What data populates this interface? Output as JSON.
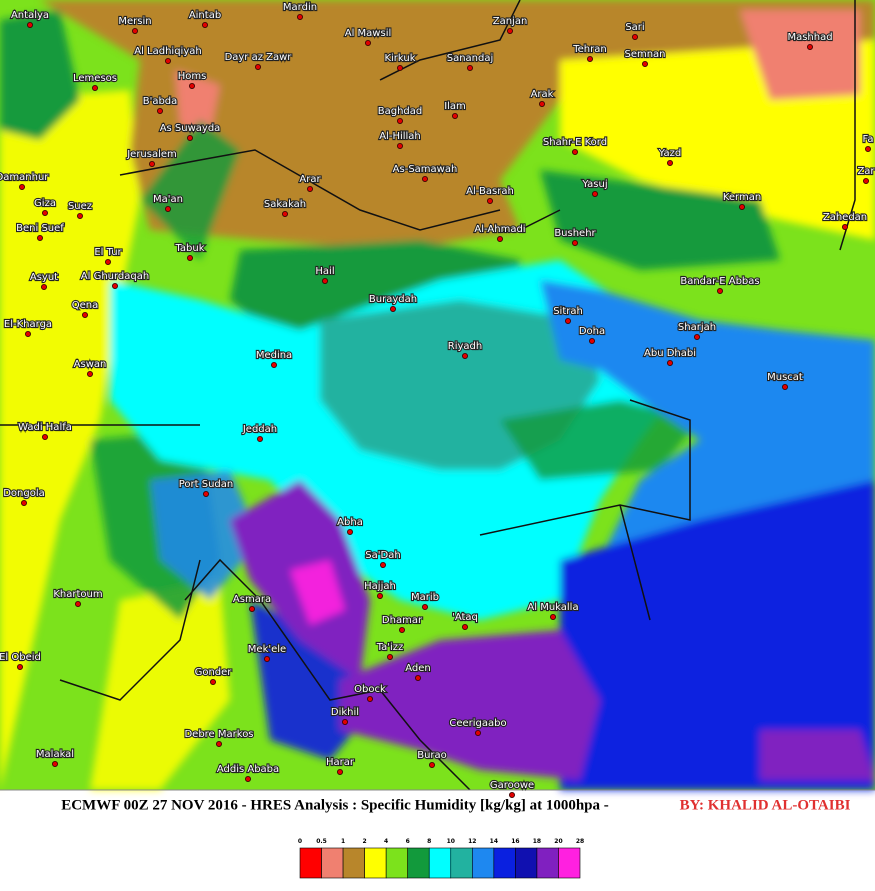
{
  "title": "ECMWF 00Z 27 NOV 2016 - HRES Analysis : Specific Humidity [kg/kg] at 1000hpa -",
  "byline": "BY: KHALID AL-OTAIBI",
  "cities": [
    "Antalya",
    "Mersin",
    "Aintab",
    "Mardin",
    "Al Mawsil",
    "Zanjan",
    "Sari",
    "Mashhad",
    "Al Ladhiqiyah",
    "Dayr az Zawr",
    "Kirkuk",
    "Sanandaj",
    "Tehran",
    "Semnan",
    "Lemesos",
    "Homs",
    "Arak",
    "B'abda",
    "Baghdad",
    "Ilam",
    "As Suwayda",
    "Al-Hillah",
    "Shahr-E Kord",
    "Yazd",
    "Fa",
    "Jerusalem",
    "As-Samawah",
    "Zar",
    "Damanhur",
    "Arar",
    "Al-Basrah",
    "Yasuj",
    "Kerman",
    "Giza",
    "Suez",
    "Ma'an",
    "Sakakah",
    "Zahedan",
    "Beni Suef",
    "Al-Ahmadi",
    "Bushehr",
    "El Tur",
    "Tabuk",
    "Asyut",
    "Al Ghurdaqah",
    "Hail",
    "Bandar-E Abbas",
    "Qena",
    "Buraydah",
    "Sitrah",
    "Sharjah",
    "El-Kharga",
    "Doha",
    "Riyadh",
    "Abu Dhabi",
    "Medina",
    "Aswan",
    "Muscat",
    "Wadi Halfa",
    "Jeddah",
    "Port Sudan",
    "Dongola",
    "Abha",
    "Sa'Dah",
    "Hajjah",
    "Marib",
    "Asmara",
    "Khartoum",
    "Al Mukalla",
    "Dhamar",
    "'Ataq",
    "Ta'izz",
    "Mek'ele",
    "Aden",
    "El Obeid",
    "Gonder",
    "Obock",
    "Dikhil",
    "Ceerigaabo",
    "Debre Markos",
    "Burao",
    "Malakal",
    "Addis Ababa",
    "Harar",
    "Garoowe"
  ],
  "legend": {
    "ticks": [
      0,
      0.5,
      1,
      2,
      4,
      6,
      8,
      10,
      12,
      14,
      16,
      18,
      20,
      28
    ],
    "colors": [
      "#ff0000",
      "#f08070",
      "#b8862b",
      "#ffff00",
      "#7ce21c",
      "#129a3c",
      "#00ffff",
      "#22b2a0",
      "#1e88f0",
      "#0a20e0",
      "#1010b0",
      "#8020c0",
      "#ff20e0"
    ]
  }
}
